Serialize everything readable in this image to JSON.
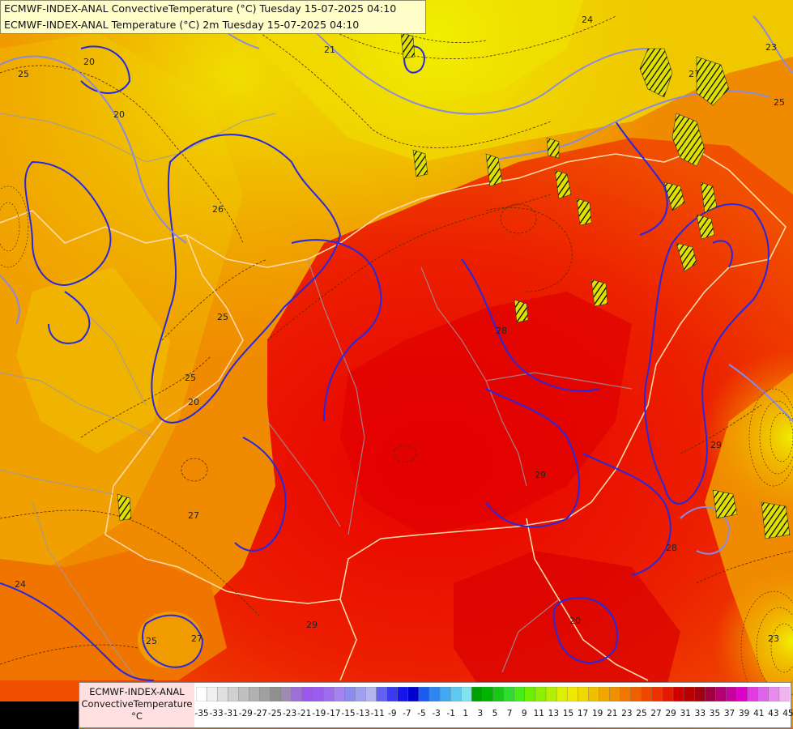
{
  "header": {
    "line1": "ECMWF-INDEX-ANAL ConvectiveTemperature (°C) Tuesday 15-07-2025 04:10",
    "line2": "ECMWF-INDEX-ANAL Temperature (°C) 2m Tuesday 15-07-2025 04:10"
  },
  "legend": {
    "line1": "ECMWF-INDEX-ANAL",
    "line2": "ConvectiveTemperature",
    "unit": "°C",
    "tick_labels": [
      "-35",
      "-33",
      "-31",
      "-29",
      "-27",
      "-25",
      "-23",
      "-21",
      "-19",
      "-17",
      "-15",
      "-13",
      "-11",
      "-9",
      "-7",
      "-5",
      "-3",
      "-1",
      "1",
      "3",
      "5",
      "7",
      "9",
      "11",
      "13",
      "15",
      "17",
      "19",
      "21",
      "23",
      "25",
      "27",
      "29",
      "31",
      "33",
      "35",
      "37",
      "39",
      "41",
      "43",
      "45"
    ],
    "colors": [
      "#ffffff",
      "#f0f0f0",
      "#e0e0e0",
      "#d0d0d0",
      "#c0c0c0",
      "#b0b0b0",
      "#a0a0a0",
      "#909090",
      "#a08ab4",
      "#9e70d6",
      "#9c58ea",
      "#9b5cf0",
      "#9f6cf0",
      "#a684f0",
      "#8c8cf0",
      "#a0a0f0",
      "#b4b4f0",
      "#6262f0",
      "#3a3aee",
      "#1414ee",
      "#0000d0",
      "#1a5cf0",
      "#2e86f0",
      "#44a8f0",
      "#5ec8f0",
      "#82e2f0",
      "#00a000",
      "#00b400",
      "#18c818",
      "#30dc30",
      "#48ec18",
      "#6cf000",
      "#8cf000",
      "#b4f000",
      "#dcf000",
      "#f0e800",
      "#f0d800",
      "#f0c000",
      "#f0a800",
      "#f09000",
      "#f07800",
      "#f06000",
      "#f04800",
      "#f03000",
      "#e81800",
      "#d00000",
      "#b80000",
      "#a00010",
      "#a00040",
      "#b40070",
      "#c800a0",
      "#dc00c8",
      "#e03ce0",
      "#e064e8",
      "#e88cf0",
      "#f0b4f0"
    ],
    "band_labels": [
      "29",
      "31",
      "33",
      "35",
      "37",
      "39",
      "41",
      "43",
      "45"
    ]
  },
  "map_labels": {
    "contours": [
      "25",
      "20",
      "24",
      "25",
      "26",
      "23",
      "25",
      "20",
      "25",
      "20",
      "27",
      "29",
      "27",
      "28",
      "20",
      "29",
      "25",
      "24",
      "23",
      "21",
      "27",
      "28",
      "29"
    ]
  },
  "colors": {
    "field_cool": "#f0b000",
    "field_warm": "#f08000",
    "field_hot": "#e81800",
    "field_hotter": "#d80000",
    "temp_contour": "#2020e0",
    "temp_contour_light": "#8080e0",
    "border": "#ffe0b0"
  }
}
